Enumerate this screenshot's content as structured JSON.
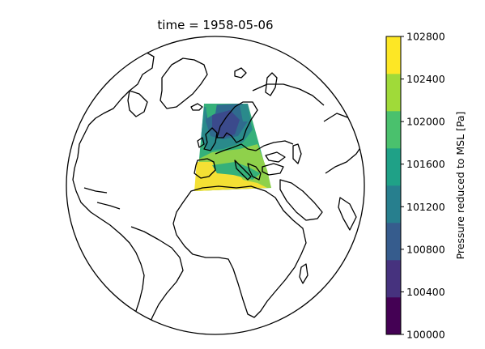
{
  "title": "time = 1958-05-06",
  "colorbar": {
    "label": "Pressure reduced to MSL [Pa]",
    "ticks": [
      "100000",
      "100400",
      "100800",
      "101200",
      "101600",
      "102000",
      "102400",
      "102800"
    ],
    "colors": [
      "#440154",
      "#46327e",
      "#365c8d",
      "#277f8e",
      "#1fa187",
      "#4ac16d",
      "#a0da39",
      "#fde725"
    ]
  },
  "map": {
    "projection": "orthographic",
    "field_levels": {
      "low": "#3b4a8c",
      "midlow": "#2f6b8e",
      "mid": "#2a8a8b",
      "midhigh": "#35b07a",
      "high": "#8fd14b",
      "highest": "#f4e034"
    }
  }
}
